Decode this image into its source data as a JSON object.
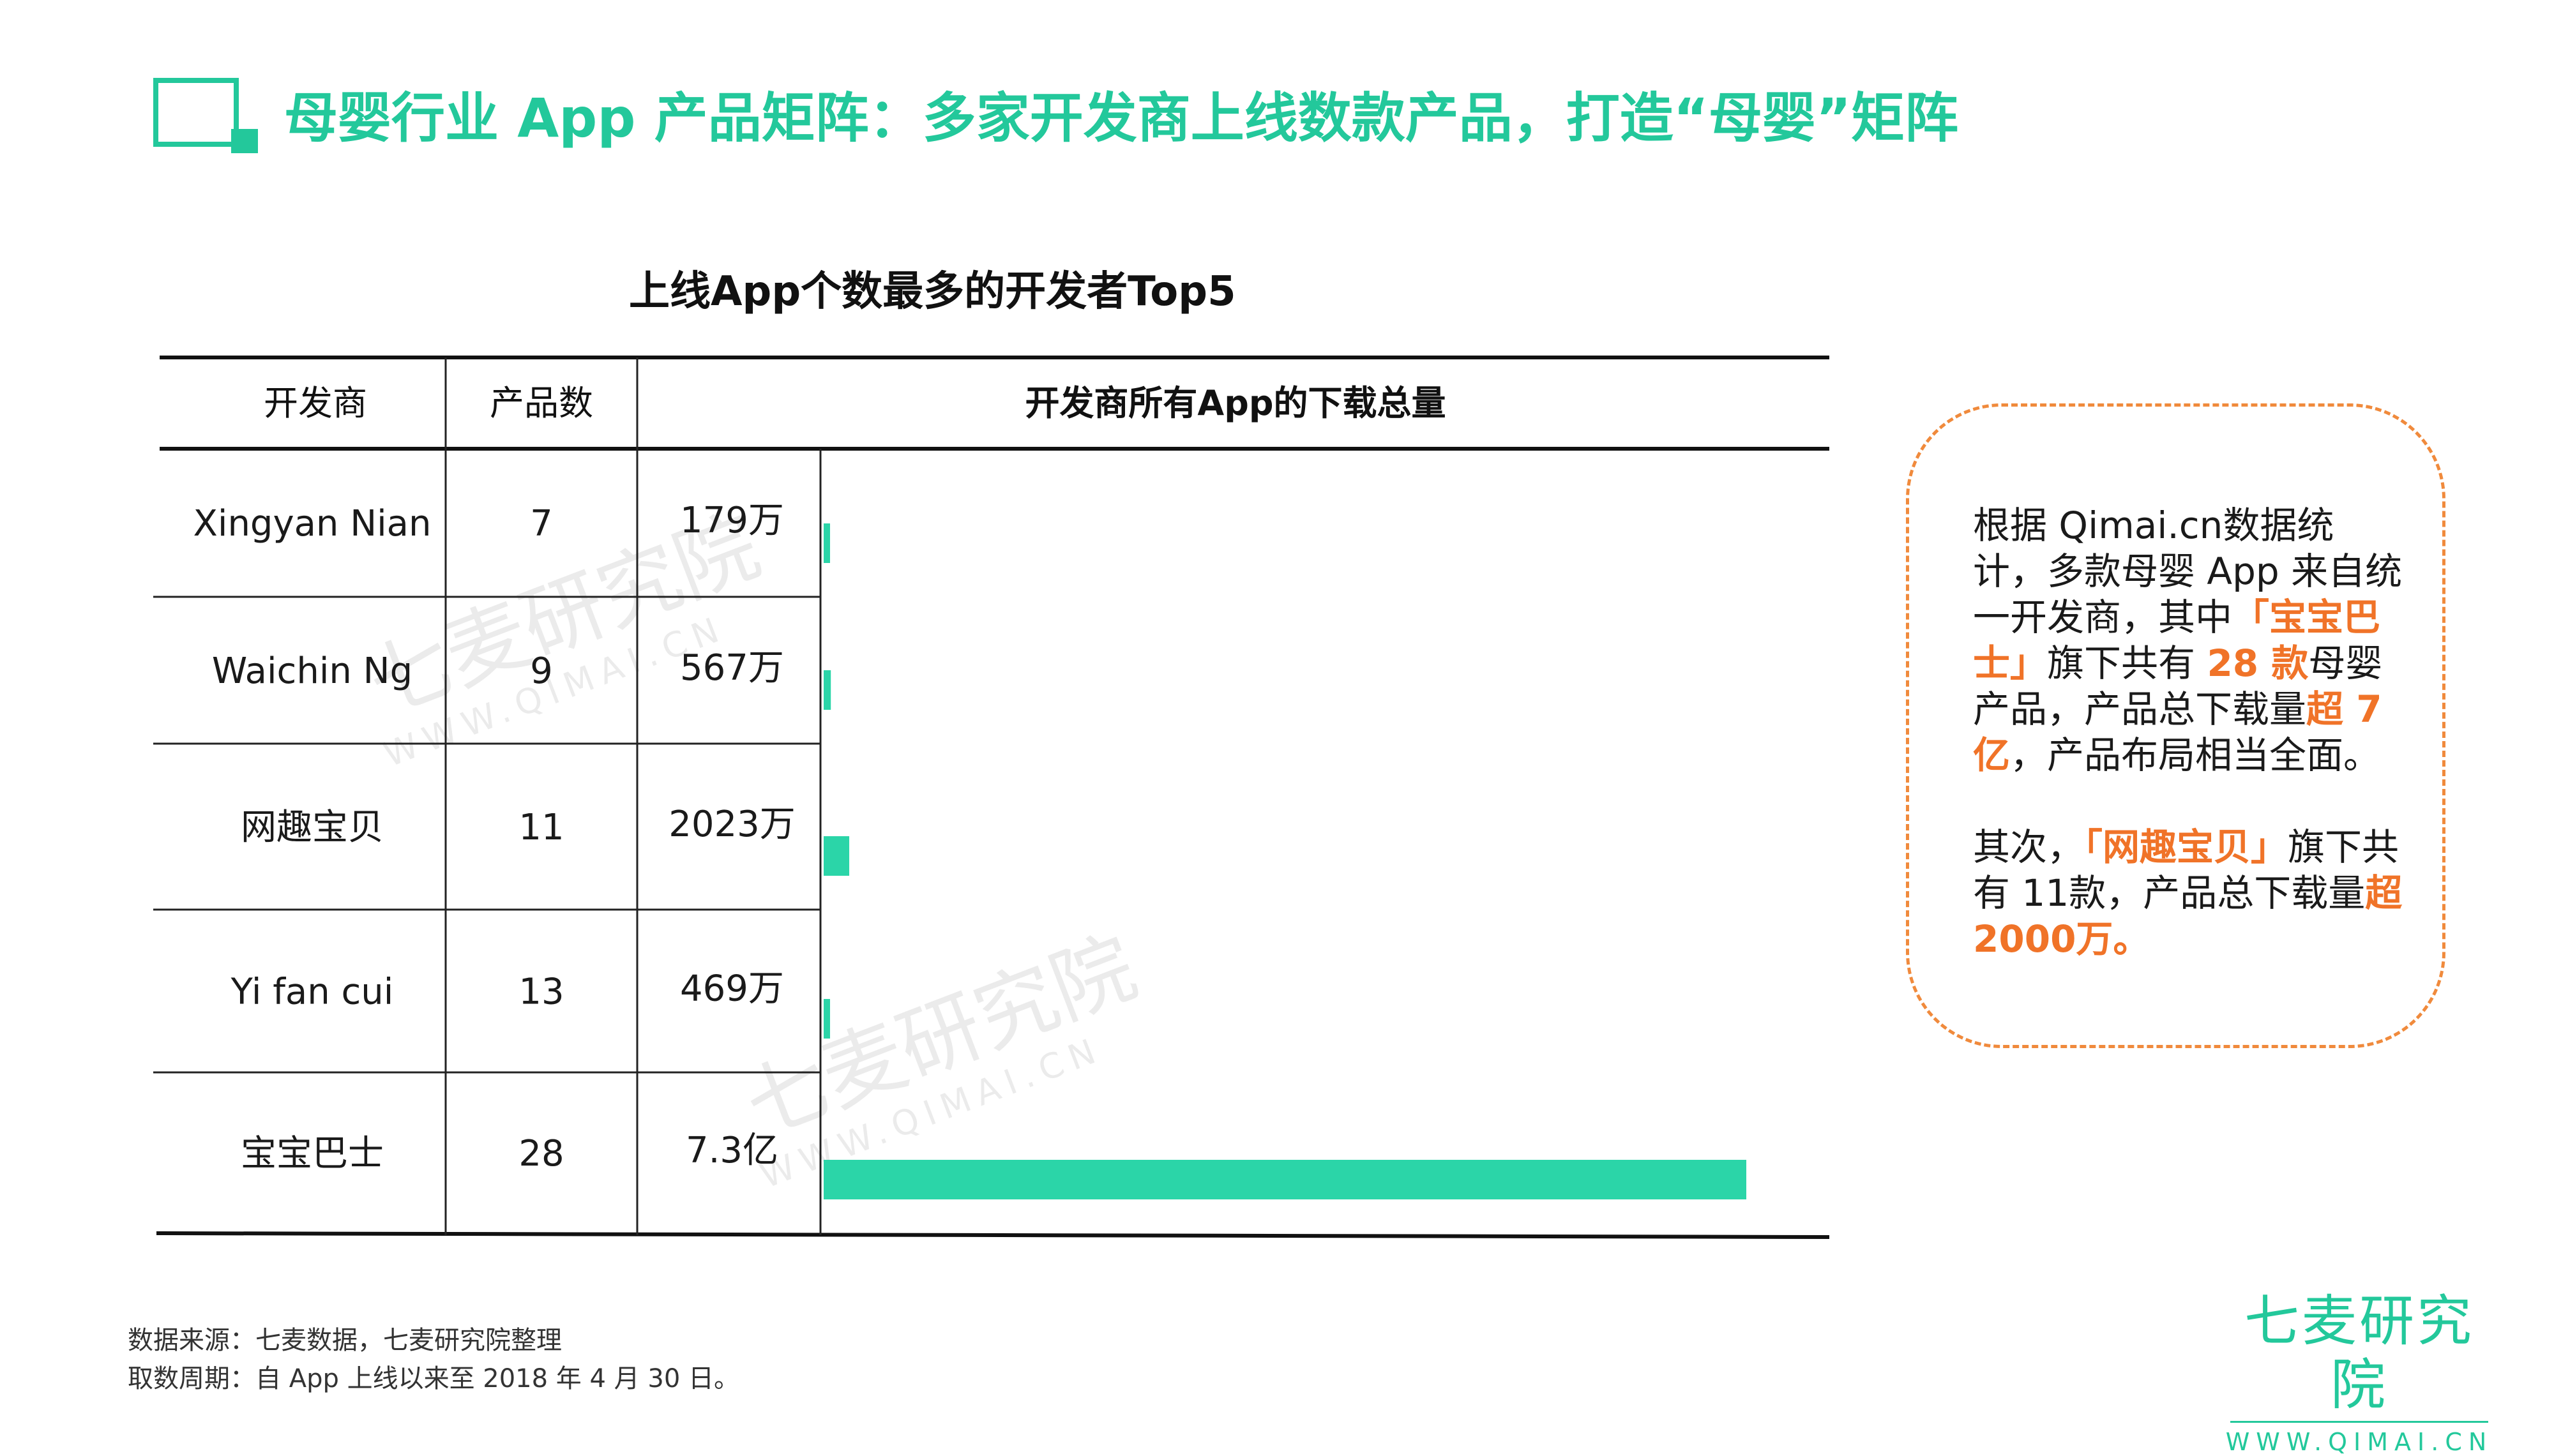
{
  "header": {
    "title": "母婴行业 App 产品矩阵：多家开发商上线数款产品，打造“母婴”矩阵"
  },
  "chart_data": {
    "type": "table",
    "title": "上线App个数最多的开发者Top5",
    "columns": [
      "开发商",
      "产品数",
      "开发商所有App的下载总量"
    ],
    "rows": [
      {
        "developer": "Xingyan Nian",
        "count": "7",
        "downloads_label": "179万",
        "downloads": 179
      },
      {
        "developer": "Waichin  Ng",
        "count": "9",
        "downloads_label": "567万",
        "downloads": 567
      },
      {
        "developer": "网趣宝贝",
        "count": "11",
        "downloads_label": "2023万",
        "downloads": 2023
      },
      {
        "developer": "Yi fan cui",
        "count": "13",
        "downloads_label": "469万",
        "downloads": 469
      },
      {
        "developer": "宝宝巴士",
        "count": "28",
        "downloads_label": "7.3亿",
        "downloads": 73000
      }
    ],
    "bar_unit": "万",
    "bar_color": "#2bd5a8",
    "xlim": [
      0,
      73000
    ]
  },
  "note": {
    "p1": [
      {
        "t": "根据 Qimai.cn数据统计，多款母婴 App 来自统一开发商，其中",
        "hl": false
      },
      {
        "t": "「宝宝巴士」",
        "hl": true
      },
      {
        "t": "旗下共有 ",
        "hl": false
      },
      {
        "t": "28 款",
        "hl": true
      },
      {
        "t": "母婴产品，产品总下载量",
        "hl": false
      },
      {
        "t": "超 7 亿",
        "hl": true
      },
      {
        "t": "，产品布局相当全面。",
        "hl": false
      }
    ],
    "p2": [
      {
        "t": "其次，",
        "hl": false
      },
      {
        "t": "「网趣宝贝」",
        "hl": true
      },
      {
        "t": "旗下共有 11款，产品总下载量",
        "hl": false
      },
      {
        "t": "超 2000万。",
        "hl": true
      }
    ],
    "highlight_color": "#f07328",
    "border_color": "#f08a3c"
  },
  "watermark": {
    "name": "七麦研究院",
    "url": "WWW.QIMAI.CN"
  },
  "footer": {
    "source": "数据来源：七麦数据，七麦研究院整理",
    "period": "取数周期：自 App 上线以来至 2018 年 4 月 30 日。"
  },
  "logo": {
    "name": "七麦研究院",
    "url": "WWW.QIMAI.CN"
  },
  "accent_color": "#23c89b"
}
